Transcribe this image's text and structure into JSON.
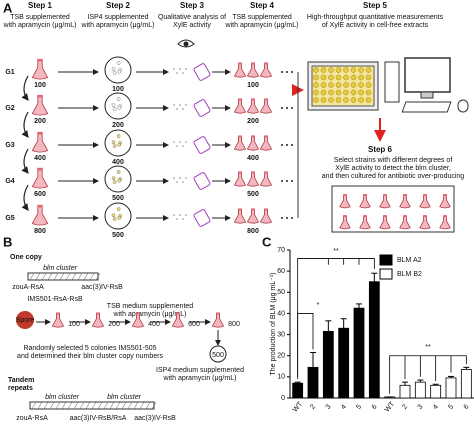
{
  "panel_a": {
    "label": "A",
    "steps": [
      {
        "title": "Step 1",
        "text": [
          "TSB supplemented",
          "with apramycin (μg/mL)"
        ]
      },
      {
        "title": "Step 2",
        "text": [
          "ISP4 supplemented",
          "with apramycin (μg/mL)"
        ]
      },
      {
        "title": "Step 3",
        "text": [
          "Qualitative analysis of",
          "XylE activity"
        ]
      },
      {
        "title": "Step 4",
        "text": [
          "TSB supplemented",
          "with apramycin (μg/mL)"
        ]
      },
      {
        "title": "Step 5",
        "text": [
          "High-throughput quantitative measurements",
          "of XylE activity in cell-free extracts"
        ]
      }
    ],
    "groups": [
      "G1",
      "G2",
      "G3",
      "G4",
      "G5"
    ],
    "step1_conc": [
      100,
      200,
      400,
      600,
      800
    ],
    "step2_conc": [
      100,
      200,
      400,
      500,
      500
    ],
    "step4_conc": [
      100,
      200,
      400,
      500,
      800
    ],
    "step6": {
      "title": "Step 6",
      "text": [
        "Select strains with different degrees of",
        "XylE activity to detect the blm cluster,",
        "and then cultured  for antibiotic over-producing"
      ]
    }
  },
  "panel_b": {
    "label": "B",
    "one_copy": "One copy",
    "cluster": "blm cluster",
    "left_gene": "zouA-RsA",
    "right_gene": "aac(3)IV-RsB",
    "strain": "IMS501-RsA-RsB",
    "spore": "Spore",
    "medium": [
      "TSB medium supplemented",
      "with apramycin (μg/mL)"
    ],
    "conc": [
      100,
      200,
      400,
      600,
      800
    ],
    "plate_conc": 500,
    "selection": [
      "Randomly selected 5 colonies IMS501-505",
      "and determined their blm cluster copy numbers"
    ],
    "plate_medium": [
      "ISP4 medium supplemented",
      "with apramycin (μg/mL)"
    ],
    "tandem": [
      "Tandem",
      "repeats"
    ],
    "tandem_clusters": [
      "blm cluster",
      "blm cluster"
    ],
    "tandem_genes": [
      "zouA-RsA",
      "aac(3)IV-RsB/RsA",
      "aac(3)IV-RsB"
    ]
  },
  "chart_data": {
    "type": "bar",
    "panel_label": "C",
    "y_label": "The production of BLM (μg mL⁻¹)",
    "categories": [
      "WT",
      "2",
      "3",
      "4",
      "5",
      "6",
      "WT",
      "2",
      "3",
      "4",
      "5",
      "6"
    ],
    "series": [
      {
        "name": "BLM A2",
        "color": "#000000",
        "values": [
          7,
          14.5,
          31.5,
          33,
          42.5,
          55,
          null,
          null,
          null,
          null,
          null,
          null
        ],
        "errors": [
          0.5,
          7,
          5,
          4.5,
          2,
          4,
          null,
          null,
          null,
          null,
          null,
          null
        ]
      },
      {
        "name": "BLM B2",
        "color": "#ffffff",
        "values": [
          null,
          null,
          null,
          null,
          null,
          null,
          0.5,
          6,
          7.5,
          6,
          9.5,
          13.5
        ],
        "errors": [
          null,
          null,
          null,
          null,
          null,
          null,
          0,
          1.5,
          1,
          0.5,
          0.7,
          1
        ]
      }
    ],
    "ylim": [
      0,
      70
    ],
    "yticks": [
      0,
      10,
      20,
      30,
      40,
      50,
      60,
      70
    ],
    "significance": [
      "**",
      "*",
      "**"
    ],
    "legend": "top-right"
  }
}
